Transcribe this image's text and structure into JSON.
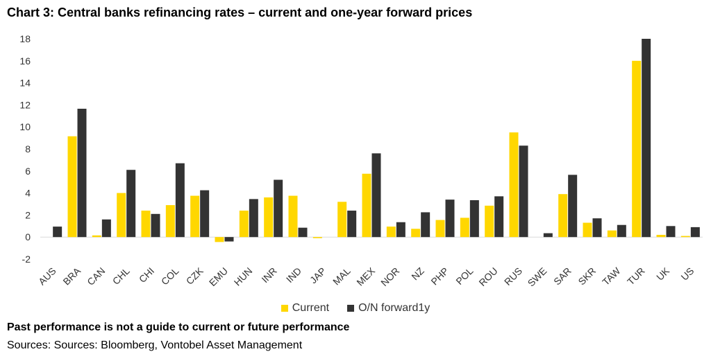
{
  "title": "Chart 3: Central banks refinancing rates – current and one-year forward prices",
  "footnote": "Past performance is not a guide to current or future performance",
  "source": "Sources: Sources: Bloomberg, Vontobel Asset Management",
  "colors": {
    "current": "#FFD700",
    "forward": "#333333",
    "axis": "#d9d9d9",
    "text": "#333333"
  },
  "chart_data": {
    "type": "bar",
    "title": "Chart 3: Central banks refinancing rates – current and one-year forward prices",
    "xlabel": "",
    "ylabel": "",
    "ylim": [
      -2,
      18
    ],
    "yticks": [
      -2,
      0,
      2,
      4,
      6,
      8,
      10,
      12,
      14,
      16,
      18
    ],
    "grid": false,
    "legend_position": "bottom",
    "categories": [
      "AUS",
      "BRA",
      "CAN",
      "CHL",
      "CHI",
      "COL",
      "CZK",
      "EMU",
      "HUN",
      "INR",
      "IND",
      "JAP",
      "MAL",
      "MEX",
      "NOR",
      "NZ",
      "PHP",
      "POL",
      "ROU",
      "RUS",
      "SWE",
      "SAR",
      "SKR",
      "TAW",
      "TUR",
      "UK",
      "US"
    ],
    "series": [
      {
        "name": "Current",
        "values": [
          0.0,
          9.15,
          0.15,
          4.0,
          2.4,
          2.9,
          3.75,
          -0.45,
          2.4,
          3.6,
          3.75,
          -0.1,
          3.2,
          5.75,
          0.95,
          0.75,
          1.55,
          1.75,
          2.85,
          9.5,
          0.0,
          3.9,
          1.3,
          0.6,
          16.0,
          0.2,
          0.1
        ]
      },
      {
        "name": "O/N forward1y",
        "values": [
          0.95,
          11.65,
          1.6,
          6.1,
          2.1,
          6.7,
          4.25,
          -0.4,
          3.45,
          5.2,
          0.85,
          0.0,
          2.4,
          7.6,
          1.35,
          2.25,
          3.4,
          3.35,
          3.7,
          8.3,
          0.35,
          5.65,
          1.7,
          1.1,
          18.0,
          1.0,
          0.9
        ]
      }
    ]
  }
}
